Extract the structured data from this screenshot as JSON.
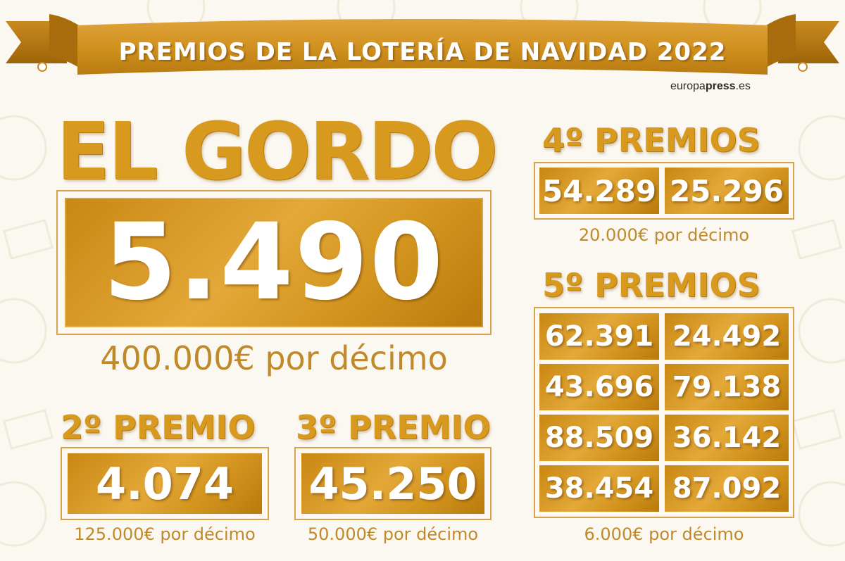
{
  "header": {
    "title": "PREMIOS DE LA LOTERÍA DE NAVIDAD 2022",
    "brand_main": "europa",
    "brand_bold": "press",
    "brand_suffix": ".es"
  },
  "gordo": {
    "heading": "EL GORDO",
    "number": "5.490",
    "prize": "400.000€ por décimo"
  },
  "segundo": {
    "heading": "2º PREMIO",
    "number": "4.074",
    "prize": "125.000€ por décimo"
  },
  "tercero": {
    "heading": "3º PREMIO",
    "number": "45.250",
    "prize": "50.000€ por décimo"
  },
  "cuartos": {
    "heading": "4º PREMIOS",
    "numbers": [
      "54.289",
      "25.296"
    ],
    "prize": "20.000€ por décimo"
  },
  "quintos": {
    "heading": "5º PREMIOS",
    "numbers": [
      "62.391",
      "24.492",
      "43.696",
      "79.138",
      "88.509",
      "36.142",
      "38.454",
      "87.092"
    ],
    "prize": "6.000€ por décimo"
  },
  "colors": {
    "gold": "#d89a1e",
    "gold_dark": "#b97a0c",
    "background": "#fbf8f1"
  }
}
